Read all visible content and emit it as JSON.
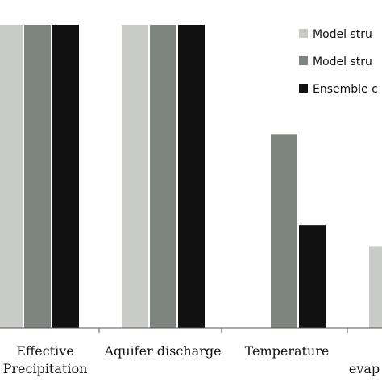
{
  "chart_data": {
    "type": "bar",
    "categories": [
      [
        "Effective",
        "Precipitation"
      ],
      [
        "Aquifer discharge"
      ],
      [
        "Temperature"
      ],
      [
        "evap"
      ]
    ],
    "series": [
      {
        "name": "Model stru",
        "color": "#c9cbc8",
        "values": [
          1.0,
          1.0,
          0.0,
          0.27
        ]
      },
      {
        "name": "Model stru",
        "color": "#7e8480",
        "values": [
          1.0,
          1.0,
          0.64,
          null
        ]
      },
      {
        "name": "Ensemble c",
        "color": "#111111",
        "values": [
          1.0,
          1.0,
          0.34,
          null
        ]
      }
    ],
    "ylim": [
      0,
      1
    ],
    "legend_position": "top-right",
    "grid": false
  }
}
